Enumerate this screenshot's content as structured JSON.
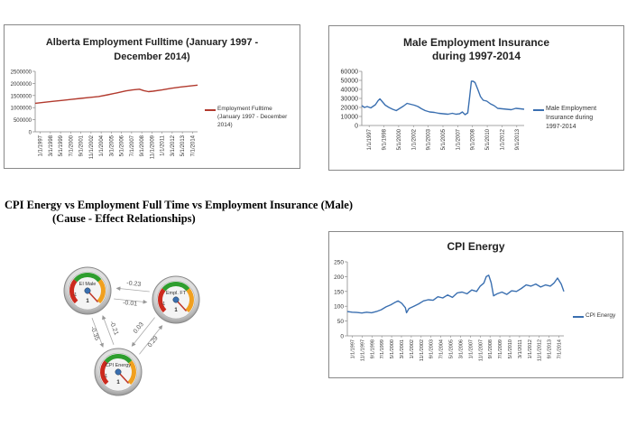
{
  "colors": {
    "alberta_line": "#b23a2e",
    "male_line": "#3a6fb0",
    "cpi_line": "#3a6fb0",
    "gauge_green": "#2e9e2e",
    "gauge_orange": "#f0a020",
    "gauge_red": "#cc2a1e"
  },
  "relationships": {
    "heading_line1": "CPI Energy vs Employment Full Time vs Employment Insurance (Male)",
    "heading_line2": "(Cause - Effect Relationships)",
    "nodes": [
      {
        "id": "ei",
        "label": "EI Male",
        "value": "1",
        "min": "-1"
      },
      {
        "id": "ft",
        "label": "Empl. FT",
        "value": "1",
        "min": "-1"
      },
      {
        "id": "cpi",
        "label": "CPI Energy",
        "value": "1",
        "min": "-1"
      }
    ],
    "edges": [
      {
        "from": "ft",
        "to": "ei",
        "weight": "-0.23"
      },
      {
        "from": "ei",
        "to": "ft",
        "weight": "-0.01"
      },
      {
        "from": "ei",
        "to": "cpi",
        "weight": "-0.35"
      },
      {
        "from": "cpi",
        "to": "ei",
        "weight": "-0.21"
      },
      {
        "from": "ft",
        "to": "cpi",
        "weight": "0.03"
      },
      {
        "from": "cpi",
        "to": "ft",
        "weight": "0.29"
      }
    ]
  },
  "chart_data": [
    {
      "id": "alberta",
      "type": "line",
      "title_line1": "Alberta Employment Fulltime (January 1997 -",
      "title_line2": "December 2014)",
      "ylim": [
        0,
        2500000
      ],
      "yticks": [
        "0",
        "500000",
        "1000000",
        "1500000",
        "2000000",
        "2500000"
      ],
      "xticks": [
        "1/1/1997",
        "3/1/1998",
        "5/1/1999",
        "7/1/2000",
        "9/1/2001",
        "11/1/2002",
        "1/1/2004",
        "3/1/2005",
        "5/1/2006",
        "7/1/2007",
        "9/1/2008",
        "11/1/2009",
        "1/1/2011",
        "3/1/2012",
        "5/1/2013",
        "7/1/2014"
      ],
      "grid": false,
      "legend_position": "right",
      "series": [
        {
          "name": "Employment Fulltime (January 1997 - December 2014)",
          "legend_line1": "Employment Fulltime",
          "legend_line2": "(January 1997 - December",
          "legend_line3": "2014)",
          "x": [
            1997.0,
            1998.0,
            1999.0,
            2000.0,
            2001.0,
            2002.0,
            2003.0,
            2004.0,
            2005.0,
            2006.0,
            2007.0,
            2007.75,
            2008.5,
            2009.0,
            2009.5,
            2010.0,
            2011.0,
            2012.0,
            2013.0,
            2014.0,
            2014.92
          ],
          "values": [
            1180000,
            1220000,
            1260000,
            1300000,
            1340000,
            1380000,
            1420000,
            1460000,
            1530000,
            1610000,
            1690000,
            1730000,
            1760000,
            1700000,
            1660000,
            1680000,
            1730000,
            1800000,
            1850000,
            1890000,
            1930000
          ]
        }
      ]
    },
    {
      "id": "male",
      "type": "line",
      "title_line1": "Male Employment Insurance",
      "title_line2": "during 1997-2014",
      "ylim": [
        0,
        60000
      ],
      "yticks": [
        "0",
        "10000",
        "20000",
        "30000",
        "40000",
        "50000",
        "60000"
      ],
      "xticks": [
        "1/1/1997",
        "9/1/1998",
        "5/1/2000",
        "1/1/2002",
        "9/1/2003",
        "5/1/2005",
        "1/1/2007",
        "9/1/2008",
        "5/1/2010",
        "1/1/2012",
        "9/1/2013"
      ],
      "grid": false,
      "legend_position": "right",
      "series": [
        {
          "name": "Male Employment Insurance during 1997-2014",
          "legend_line1": "Male Employment",
          "legend_line2": "Insurance during",
          "legend_line3": "1997-2014",
          "x": [
            1997.0,
            1997.3,
            1997.6,
            1998.0,
            1998.5,
            1998.8,
            1999.0,
            1999.3,
            1999.6,
            2000.0,
            2000.4,
            2000.8,
            2001.2,
            2001.6,
            2002.0,
            2002.4,
            2002.8,
            2003.2,
            2003.6,
            2004.0,
            2004.5,
            2005.0,
            2005.5,
            2006.0,
            2006.5,
            2007.0,
            2007.4,
            2007.8,
            2008.1,
            2008.4,
            2008.7,
            2008.9,
            2009.1,
            2009.3,
            2009.5,
            2009.8,
            2010.1,
            2010.4,
            2010.8,
            2011.2,
            2011.6,
            2012.0,
            2012.5,
            2013.0,
            2013.5,
            2014.0,
            2014.5,
            2014.92
          ],
          "values": [
            22000,
            20000,
            21000,
            19500,
            23000,
            27500,
            29500,
            26000,
            22500,
            20000,
            18000,
            16500,
            19000,
            21500,
            24500,
            23500,
            22500,
            21000,
            18500,
            16500,
            15000,
            14500,
            13500,
            13000,
            12500,
            13500,
            12500,
            13000,
            15000,
            12000,
            14000,
            31000,
            49000,
            49000,
            47500,
            40000,
            32000,
            28000,
            27000,
            24000,
            22000,
            19000,
            18500,
            18000,
            17500,
            19000,
            18500,
            18000
          ]
        }
      ]
    },
    {
      "id": "cpi",
      "type": "line",
      "title": "CPI Energy",
      "ylim": [
        0,
        250
      ],
      "yticks": [
        "0",
        "50",
        "100",
        "150",
        "200",
        "250"
      ],
      "xticks": [
        "1/1/1997",
        "11/1/1997",
        "9/1/1998",
        "7/1/1999",
        "5/1/2000",
        "3/1/2001",
        "1/1/2002",
        "11/1/2002",
        "9/1/2003",
        "7/1/2004",
        "5/1/2005",
        "3/1/2006",
        "1/1/2007",
        "11/1/2007",
        "9/1/2008",
        "7/1/2009",
        "5/1/2010",
        "3/1/2011",
        "1/1/2012",
        "11/1/2012",
        "9/1/2013",
        "7/1/2014"
      ],
      "grid": false,
      "legend_position": "right",
      "series": [
        {
          "name": "CPI Energy",
          "x": [
            1997.0,
            1997.4,
            1997.8,
            1998.2,
            1998.6,
            1999.0,
            1999.4,
            1999.8,
            2000.2,
            2000.6,
            2000.9,
            2001.2,
            2001.5,
            2001.8,
            2001.9,
            2002.1,
            2002.5,
            2002.9,
            2003.3,
            2003.7,
            2004.1,
            2004.5,
            2004.9,
            2005.3,
            2005.7,
            2006.1,
            2006.5,
            2006.9,
            2007.3,
            2007.7,
            2008.0,
            2008.3,
            2008.5,
            2008.7,
            2008.9,
            2009.1,
            2009.4,
            2009.8,
            2010.2,
            2010.6,
            2011.0,
            2011.4,
            2011.8,
            2012.2,
            2012.6,
            2013.0,
            2013.4,
            2013.8,
            2014.1,
            2014.4,
            2014.7,
            2014.92
          ],
          "values": [
            82,
            80,
            79,
            77,
            80,
            78,
            82,
            88,
            98,
            105,
            112,
            118,
            110,
            95,
            78,
            92,
            100,
            108,
            118,
            122,
            120,
            132,
            128,
            138,
            130,
            145,
            148,
            142,
            155,
            150,
            168,
            178,
            200,
            205,
            180,
            135,
            142,
            148,
            140,
            152,
            150,
            160,
            172,
            168,
            175,
            165,
            172,
            168,
            178,
            195,
            175,
            150
          ]
        }
      ]
    }
  ]
}
